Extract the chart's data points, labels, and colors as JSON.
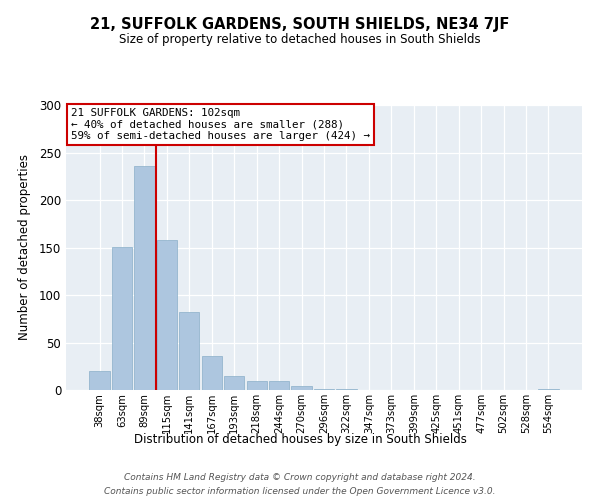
{
  "title": "21, SUFFOLK GARDENS, SOUTH SHIELDS, NE34 7JF",
  "subtitle": "Size of property relative to detached houses in South Shields",
  "xlabel": "Distribution of detached houses by size in South Shields",
  "ylabel": "Number of detached properties",
  "bar_labels": [
    "38sqm",
    "63sqm",
    "89sqm",
    "115sqm",
    "141sqm",
    "167sqm",
    "193sqm",
    "218sqm",
    "244sqm",
    "270sqm",
    "296sqm",
    "322sqm",
    "347sqm",
    "373sqm",
    "399sqm",
    "425sqm",
    "451sqm",
    "477sqm",
    "502sqm",
    "528sqm",
    "554sqm"
  ],
  "bar_values": [
    20,
    151,
    236,
    158,
    82,
    36,
    15,
    9,
    9,
    4,
    1,
    1,
    0,
    0,
    0,
    0,
    0,
    0,
    0,
    0,
    1
  ],
  "bar_color": "#adc6df",
  "bar_edge_color": "#8aafc8",
  "vline_x": 2.5,
  "vline_color": "#cc0000",
  "annotation_title": "21 SUFFOLK GARDENS: 102sqm",
  "annotation_line1": "← 40% of detached houses are smaller (288)",
  "annotation_line2": "59% of semi-detached houses are larger (424) →",
  "annotation_box_edge": "#cc0000",
  "ylim": [
    0,
    300
  ],
  "yticks": [
    0,
    50,
    100,
    150,
    200,
    250,
    300
  ],
  "footnote1": "Contains HM Land Registry data © Crown copyright and database right 2024.",
  "footnote2": "Contains public sector information licensed under the Open Government Licence v3.0.",
  "axes_bg": "#e8eef4",
  "fig_bg": "#ffffff"
}
